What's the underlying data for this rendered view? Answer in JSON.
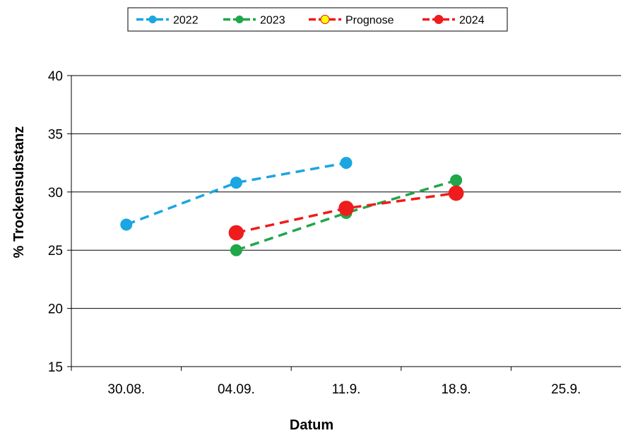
{
  "chart_data": {
    "type": "line",
    "title": "",
    "xlabel": "Datum",
    "ylabel": "% Trockensubstanz",
    "categories": [
      "30.08.",
      "04.09.",
      "11.9.",
      "18.9.",
      "25.9."
    ],
    "ylim": [
      15,
      40
    ],
    "yticks": [
      15,
      20,
      25,
      30,
      35,
      40
    ],
    "grid": "horizontal",
    "legend_position": "top",
    "series": [
      {
        "name": "2022",
        "color": "#1aa6e0",
        "marker_fill": "#1aa6e0",
        "marker_stroke": "#1aa6e0",
        "marker": "small",
        "points": [
          {
            "x": "30.08.",
            "y": 27.2
          },
          {
            "x": "04.09.",
            "y": 30.8
          },
          {
            "x": "11.9.",
            "y": 32.5
          }
        ]
      },
      {
        "name": "2023",
        "color": "#1fa74a",
        "marker_fill": "#1fa74a",
        "marker_stroke": "#1fa74a",
        "marker": "small",
        "points": [
          {
            "x": "04.09.",
            "y": 25.0
          },
          {
            "x": "11.9.",
            "y": 28.2
          },
          {
            "x": "18.9.",
            "y": 31.0
          }
        ]
      },
      {
        "name": "Prognose",
        "color": "#ee1c1c",
        "marker_fill": "#ffff00",
        "marker_stroke": "#dd1111",
        "marker": "large",
        "points": [
          {
            "x": "18.9.",
            "y": 29.9
          }
        ]
      },
      {
        "name": "2024",
        "color": "#ee1c1c",
        "marker_fill": "#ee1c1c",
        "marker_stroke": "#ee1c1c",
        "marker": "large",
        "points": [
          {
            "x": "04.09.",
            "y": 26.5
          },
          {
            "x": "11.9.",
            "y": 28.6
          },
          {
            "x": "18.9.",
            "y": 29.9
          }
        ]
      }
    ]
  }
}
